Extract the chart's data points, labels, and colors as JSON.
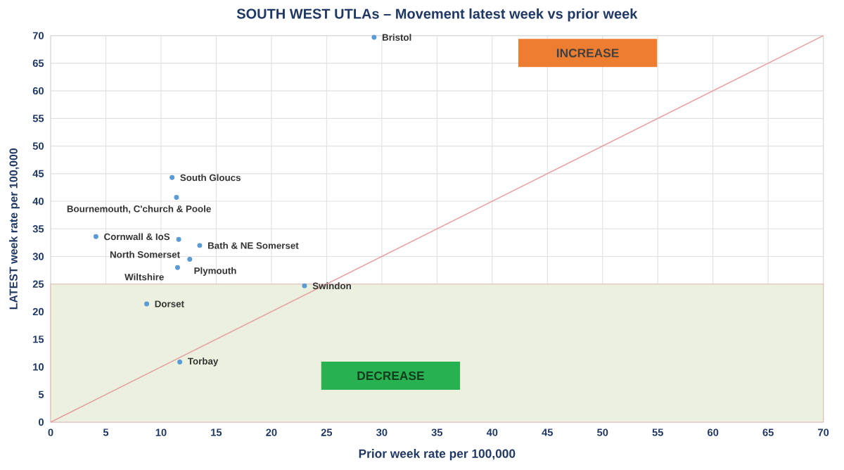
{
  "chart_data": {
    "type": "scatter",
    "title": "SOUTH WEST UTLAs – Movement latest week vs prior week",
    "xlabel": "Prior week rate per 100,000",
    "ylabel": "LATEST week rate per 100,000",
    "series": [
      {
        "marker": "circle",
        "color": "#5b9bd5",
        "x": [
          29.3,
          11.0,
          11.4,
          4.1,
          11.6,
          13.5,
          12.6,
          11.5,
          23.0,
          8.7,
          11.7
        ],
        "values": [
          69.7,
          44.3,
          40.7,
          33.6,
          33.1,
          32.0,
          29.5,
          28.0,
          24.7,
          21.4,
          10.9
        ]
      },
      {
        "type": "line",
        "marker": "none",
        "color": "#e6a0a0",
        "x": [
          0,
          70
        ],
        "values": [
          0,
          70
        ]
      }
    ],
    "grid": true,
    "xlim": [
      0,
      70
    ],
    "ylim": [
      0,
      70
    ],
    "xticks": [
      0,
      5,
      10,
      15,
      20,
      25,
      30,
      35,
      40,
      45,
      50,
      55,
      60,
      65,
      70
    ],
    "yticks": [
      0,
      5,
      10,
      15,
      20,
      25,
      30,
      35,
      40,
      45,
      50,
      55,
      60,
      65,
      70
    ],
    "bands": [
      {
        "axis": "y",
        "from": 0,
        "to": 25,
        "label": "DECREASE",
        "color": "#ebf1de"
      }
    ],
    "annotations": [
      {
        "text": "Bristol",
        "x": 29.3,
        "y": 69.7
      },
      {
        "text": "South Gloucs",
        "x": 11.0,
        "y": 44.3
      },
      {
        "text": "Bournemouth, C'church & Poole",
        "x": 11.4,
        "y": 40.7
      },
      {
        "text": "Cornwall & IoS",
        "x": 4.1,
        "y": 33.6
      },
      {
        "text": "North Somerset",
        "x": 11.6,
        "y": 33.1
      },
      {
        "text": "Bath & NE Somerset",
        "x": 13.5,
        "y": 32.0
      },
      {
        "text": "Plymouth",
        "x": 12.6,
        "y": 29.5
      },
      {
        "text": "Wiltshire",
        "x": 11.5,
        "y": 28.0
      },
      {
        "text": "Swindon",
        "x": 23.0,
        "y": 24.7
      },
      {
        "text": "Dorset",
        "x": 8.7,
        "y": 21.4
      },
      {
        "text": "Torbay",
        "x": 11.7,
        "y": 10.9
      },
      "INCREASE"
    ]
  }
}
